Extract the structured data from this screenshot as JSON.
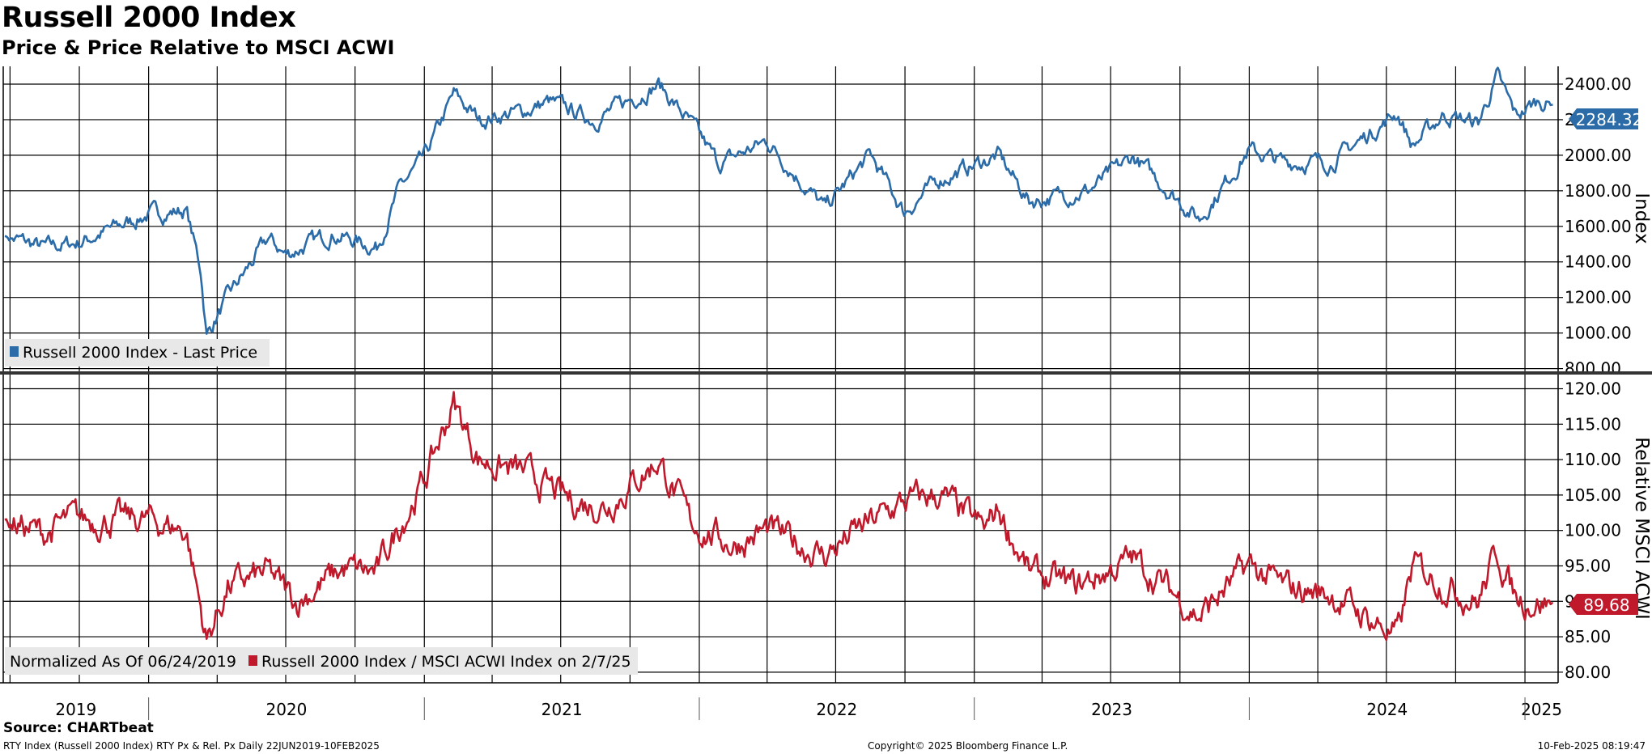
{
  "header": {
    "title": "Russell 2000 Index",
    "subtitle": "Price & Price Relative to MSCI ACWI"
  },
  "footer": {
    "source": "Source: CHARTbeat",
    "ticker_info": "RTY Index (Russell 2000 Index) RTY Px & Rel. Px  Daily 22JUN2019-10FEB2025",
    "copyright": "Copyright© 2025 Bloomberg Finance L.P.",
    "timestamp": "10-Feb-2025 08:19:47"
  },
  "colors": {
    "price": "#2b6ca8",
    "relative": "#c0192c",
    "grid": "#000000"
  },
  "chart_data": [
    {
      "type": "line",
      "ylabel": "Index",
      "ylim": [
        780,
        2500
      ],
      "yticks": [
        800,
        1000,
        1200,
        1400,
        1600,
        1800,
        2000,
        2200,
        2400
      ],
      "ytick_labels": [
        "800.00",
        "1000.00",
        "1200.00",
        "1400.00",
        "1600.00",
        "1800.00",
        "2000.00",
        "2200.00",
        "2400.00"
      ],
      "last_value_label": "2284.32",
      "legend": "top-left of bottom edge",
      "series": [
        {
          "name": "Russell 2000 Index - Last Price",
          "x": [
            "2019-06-24",
            "2019-08-15",
            "2019-10-01",
            "2019-12-31",
            "2020-02-20",
            "2020-03-10",
            "2020-03-18",
            "2020-04-15",
            "2020-06-08",
            "2020-07-01",
            "2020-09-01",
            "2020-10-30",
            "2020-11-30",
            "2021-01-01",
            "2021-02-09",
            "2021-03-15",
            "2021-05-15",
            "2021-06-15",
            "2021-08-15",
            "2021-11-08",
            "2021-12-20",
            "2022-01-27",
            "2022-04-01",
            "2022-06-16",
            "2022-08-16",
            "2022-09-30",
            "2022-11-15",
            "2023-02-02",
            "2023-03-15",
            "2023-06-01",
            "2023-07-31",
            "2023-10-27",
            "2023-12-31",
            "2024-02-15",
            "2024-04-19",
            "2024-07-16",
            "2024-08-05",
            "2024-09-15",
            "2024-10-31",
            "2024-11-25",
            "2024-12-20",
            "2025-01-20",
            "2025-02-07"
          ],
          "values": [
            1545,
            1480,
            1510,
            1668,
            1690,
            1360,
            990,
            1200,
            1530,
            1440,
            1560,
            1480,
            1820,
            1980,
            2340,
            2200,
            2250,
            2300,
            2200,
            2400,
            2180,
            1950,
            2080,
            1700,
            2000,
            1680,
            1860,
            2000,
            1740,
            1800,
            1990,
            1640,
            2030,
            1960,
            1960,
            2240,
            2050,
            2230,
            2180,
            2440,
            2220,
            2310,
            2284.32
          ]
        }
      ]
    },
    {
      "type": "line",
      "ylabel": "Relative MSCI ACWI",
      "ylim": [
        78.5,
        122
      ],
      "yticks": [
        80,
        85,
        90,
        95,
        100,
        105,
        110,
        115,
        120
      ],
      "ytick_labels": [
        "80.00",
        "85.00",
        "90.00",
        "95.00",
        "100.00",
        "105.00",
        "110.00",
        "115.00",
        "120.00"
      ],
      "last_value_label": "89.68",
      "legend": "top-left of bottom edge",
      "normalization_note": "Normalized As Of 06/24/2019",
      "series": [
        {
          "name": "Russell 2000 Index / MSCI ACWI Index on 2/7/25",
          "x": [
            "2019-06-24",
            "2019-08-15",
            "2019-09-20",
            "2019-12-31",
            "2020-02-20",
            "2020-03-18",
            "2020-04-15",
            "2020-06-08",
            "2020-07-15",
            "2020-09-15",
            "2020-10-30",
            "2020-11-30",
            "2021-01-01",
            "2021-02-09",
            "2021-03-15",
            "2021-05-15",
            "2021-07-15",
            "2021-08-31",
            "2021-11-08",
            "2021-12-20",
            "2022-02-15",
            "2022-04-01",
            "2022-06-16",
            "2022-07-31",
            "2022-09-30",
            "2022-11-15",
            "2023-01-15",
            "2023-02-02",
            "2023-03-15",
            "2023-05-15",
            "2023-07-31",
            "2023-10-27",
            "2023-12-31",
            "2024-02-15",
            "2024-04-19",
            "2024-07-16",
            "2024-08-05",
            "2024-10-31",
            "2024-11-25",
            "2024-12-20",
            "2025-02-07"
          ],
          "values": [
            101.5,
            99.5,
            101.5,
            101.5,
            100,
            84.5,
            92,
            94,
            90,
            94.5,
            94,
            101,
            107,
            118,
            110,
            108,
            104,
            103.5,
            110,
            101,
            98,
            100,
            96.5,
            100,
            104,
            105,
            100,
            103,
            94,
            92,
            96,
            88,
            95,
            92,
            91,
            85,
            95,
            90,
            97,
            90.5,
            89.68
          ]
        }
      ]
    }
  ],
  "xaxis": {
    "year_labels": [
      "2019",
      "2020",
      "2021",
      "2022",
      "2023",
      "2024",
      "2025"
    ]
  }
}
